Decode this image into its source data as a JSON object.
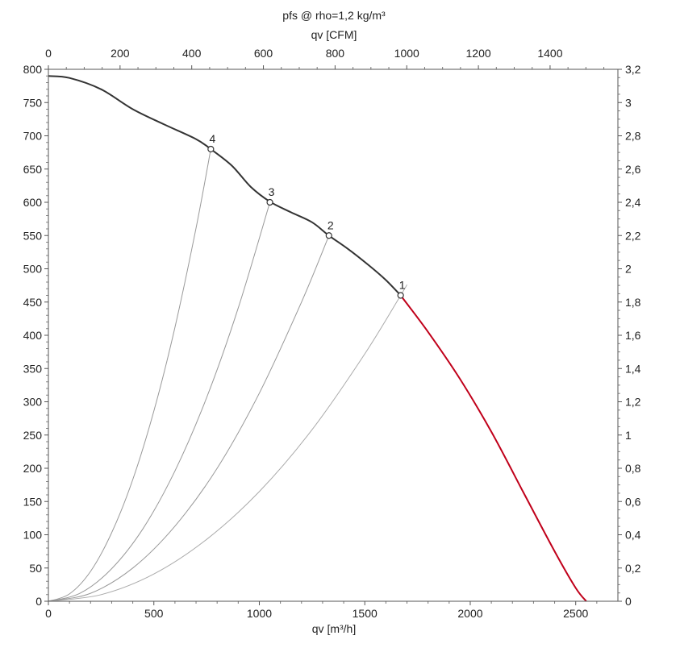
{
  "chart_data": {
    "type": "line",
    "title": "pfs @ rho=1,2 kg/m³",
    "xlabel": "qv [m³/h]",
    "x2label": "qv [CFM]",
    "ylabel": "",
    "xlim": [
      0,
      2700
    ],
    "ylim": [
      0,
      800
    ],
    "x_ticks": [
      0,
      500,
      1000,
      1500,
      2000,
      2500
    ],
    "x_tick_labels": [
      "0",
      "500",
      "1000",
      "1500",
      "2000",
      "2500"
    ],
    "x2_ticks": [
      0,
      200,
      400,
      600,
      800,
      1000,
      1200,
      1400
    ],
    "x2_tick_labels": [
      "0",
      "200",
      "400",
      "600",
      "800",
      "1000",
      "1200",
      "1400"
    ],
    "x2_per_x": 0.5886,
    "y_ticks": [
      0,
      50,
      100,
      150,
      200,
      250,
      300,
      350,
      400,
      450,
      500,
      550,
      600,
      650,
      700,
      750,
      800
    ],
    "y_tick_labels": [
      "0",
      "50",
      "100",
      "150",
      "200",
      "250",
      "300",
      "350",
      "400",
      "450",
      "500",
      "550",
      "600",
      "650",
      "700",
      "750",
      "800"
    ],
    "y2_ticks": [
      0,
      0.2,
      0.4,
      0.6,
      0.8,
      1,
      1.2,
      1.4,
      1.6,
      1.8,
      2,
      2.2,
      2.4,
      2.6,
      2.8,
      3,
      3.2
    ],
    "y2_tick_labels": [
      "0",
      "0,2",
      "0,4",
      "0,6",
      "0,8",
      "1",
      "1,2",
      "1,4",
      "1,6",
      "1,8",
      "2",
      "2,2",
      "2,4",
      "2,6",
      "2,8",
      "3",
      "3,2"
    ],
    "y2_per_y": 0.004,
    "grid": false,
    "series": [
      {
        "color": "#333333",
        "x": [
          0,
          100,
          250,
          400,
          550,
          700,
          770,
          870,
          960,
          1050,
          1150,
          1250,
          1330,
          1420,
          1520,
          1600,
          1670
        ],
        "y": [
          790,
          787,
          770,
          740,
          717,
          695,
          680,
          655,
          623,
          601,
          585,
          570,
          550,
          530,
          505,
          483,
          460
        ]
      },
      {
        "color": "#c0001a",
        "x": [
          1670,
          1800,
          1950,
          2100,
          2250,
          2400,
          2500,
          2550
        ],
        "y": [
          460,
          405,
          335,
          255,
          165,
          75,
          20,
          0
        ]
      }
    ],
    "system_curves": [
      {
        "label": "4",
        "color": "#999999",
        "x": [
          0,
          100,
          200,
          300,
          400,
          500,
          600,
          700,
          770
        ],
        "y": [
          0,
          11,
          45,
          103,
          183,
          286,
          412,
          561,
          680
        ]
      },
      {
        "label": "3",
        "color": "#999999",
        "x": [
          0,
          150,
          300,
          450,
          600,
          750,
          900,
          1050
        ],
        "y": [
          0,
          12,
          49,
          110,
          196,
          306,
          441,
          600
        ]
      },
      {
        "label": "2",
        "color": "#999999",
        "x": [
          0,
          200,
          400,
          600,
          800,
          1000,
          1200,
          1330
        ],
        "y": [
          0,
          12,
          50,
          113,
          200,
          313,
          450,
          550
        ]
      },
      {
        "label": "1",
        "color": "#aaaaaa",
        "x": [
          0,
          250,
          500,
          750,
          1000,
          1250,
          1500,
          1670,
          1700
        ],
        "y": [
          0,
          10,
          41,
          93,
          165,
          258,
          372,
          460,
          476
        ]
      }
    ],
    "operating_points": [
      {
        "label": "1",
        "x": 1670,
        "y": 460
      },
      {
        "label": "2",
        "x": 1330,
        "y": 550
      },
      {
        "label": "3",
        "x": 1050,
        "y": 600
      },
      {
        "label": "4",
        "x": 770,
        "y": 680
      }
    ]
  }
}
